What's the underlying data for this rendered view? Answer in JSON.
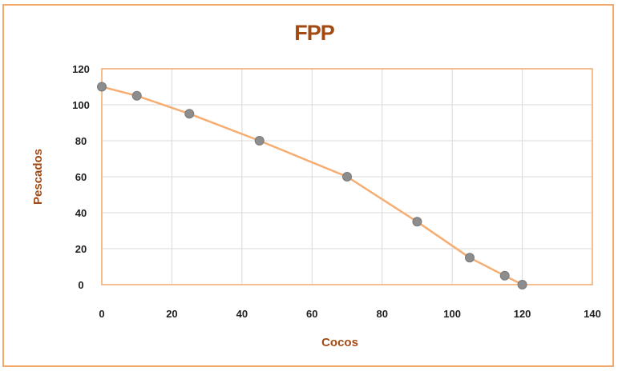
{
  "chart_data": {
    "type": "scatter",
    "title": "FPP",
    "xlabel": "Cocos",
    "ylabel": "Pescados",
    "xlim": [
      0,
      140
    ],
    "ylim": [
      0,
      120
    ],
    "x_ticks": [
      "0",
      "20",
      "40",
      "60",
      "80",
      "100",
      "120",
      "140"
    ],
    "y_ticks": [
      "0",
      "20",
      "40",
      "60",
      "80",
      "100",
      "120"
    ],
    "grid": true,
    "legend": "none",
    "colors": {
      "line": "#f6ad72",
      "marker": "#8d8d8d",
      "border": "#f3a968",
      "title": "#a34a12"
    },
    "series": [
      {
        "x": [
          0,
          10,
          25,
          45,
          70,
          90,
          105,
          115,
          120
        ],
        "y": [
          110,
          105,
          95,
          80,
          60,
          35,
          15,
          5,
          0
        ]
      }
    ]
  }
}
